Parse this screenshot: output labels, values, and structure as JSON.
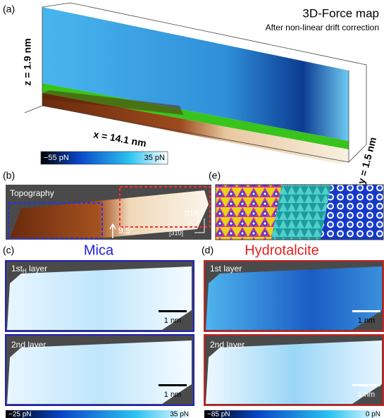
{
  "panel_a": {
    "label": "(a)",
    "title": "3D-Force map",
    "subtitle": "After non-linear drift correction",
    "z_axis": "z = 1.9 nm",
    "x_axis": "x = 14.1 nm",
    "y_axis": "y = 1.5 nm",
    "colorbar": {
      "min": "−55 pN",
      "max": "35 pN"
    }
  },
  "panel_b": {
    "label": "(b)",
    "title": "Topography",
    "angle": "9.5°",
    "direction_1": "[1̄10]",
    "direction_2": "[31̄0]"
  },
  "panel_e": {
    "label": "(e)"
  },
  "panel_c": {
    "label": "(c)",
    "title": "Mica",
    "layer_1": {
      "text": "1st",
      "sub": "H",
      "rest": " layer"
    },
    "layer_2": "2nd layer",
    "scale_1": "1 nm",
    "scale_2": "1 nm",
    "colorbar": {
      "min": "−25 pN",
      "max": "35 pN"
    }
  },
  "panel_d": {
    "label": "(d)",
    "title": "Hydrotalcite",
    "layer_1": "1st layer",
    "layer_2": "2nd layer",
    "scale_1": "1 nm",
    "scale_2": "1 nm",
    "colorbar": {
      "min": "−85 pN",
      "max": "0 pN"
    }
  }
}
